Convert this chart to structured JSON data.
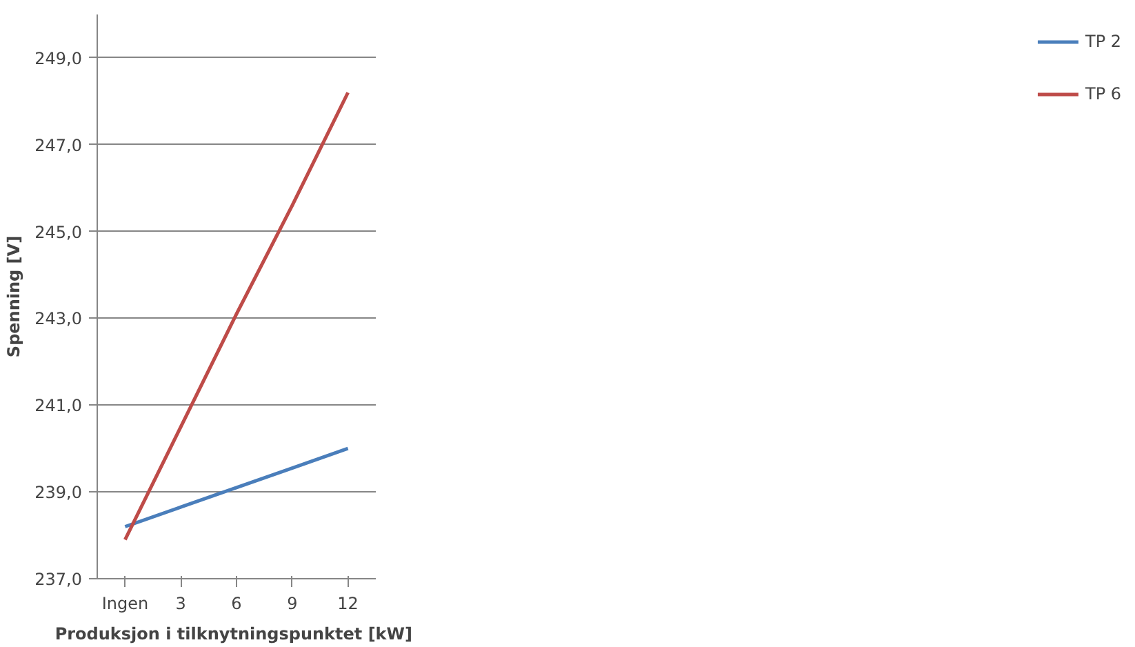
{
  "chart_data": {
    "type": "line",
    "xlabel": "Produksjon  i tilknytningspunktet [kW]",
    "ylabel": "Spenning [V]",
    "categories": [
      "Ingen",
      "3",
      "6",
      "9",
      "12"
    ],
    "series": [
      {
        "name": "TP 2",
        "color": "#4a7ebb",
        "values": [
          238.2,
          238.65,
          239.1,
          239.55,
          240.0
        ]
      },
      {
        "name": "TP 6",
        "color": "#be4b48",
        "values": [
          237.9,
          240.5,
          243.1,
          245.6,
          248.2
        ]
      }
    ],
    "ylim": [
      237,
      250
    ],
    "yticks": [
      {
        "value": 237,
        "label": "237,0"
      },
      {
        "value": 239,
        "label": "239,0"
      },
      {
        "value": 241,
        "label": "241,0"
      },
      {
        "value": 243,
        "label": "243,0"
      },
      {
        "value": 245,
        "label": "245,0"
      },
      {
        "value": 247,
        "label": "247,0"
      },
      {
        "value": 249,
        "label": "249,0"
      }
    ],
    "grid": "y",
    "legend": "right",
    "marker": "none",
    "line_style": "solid"
  }
}
